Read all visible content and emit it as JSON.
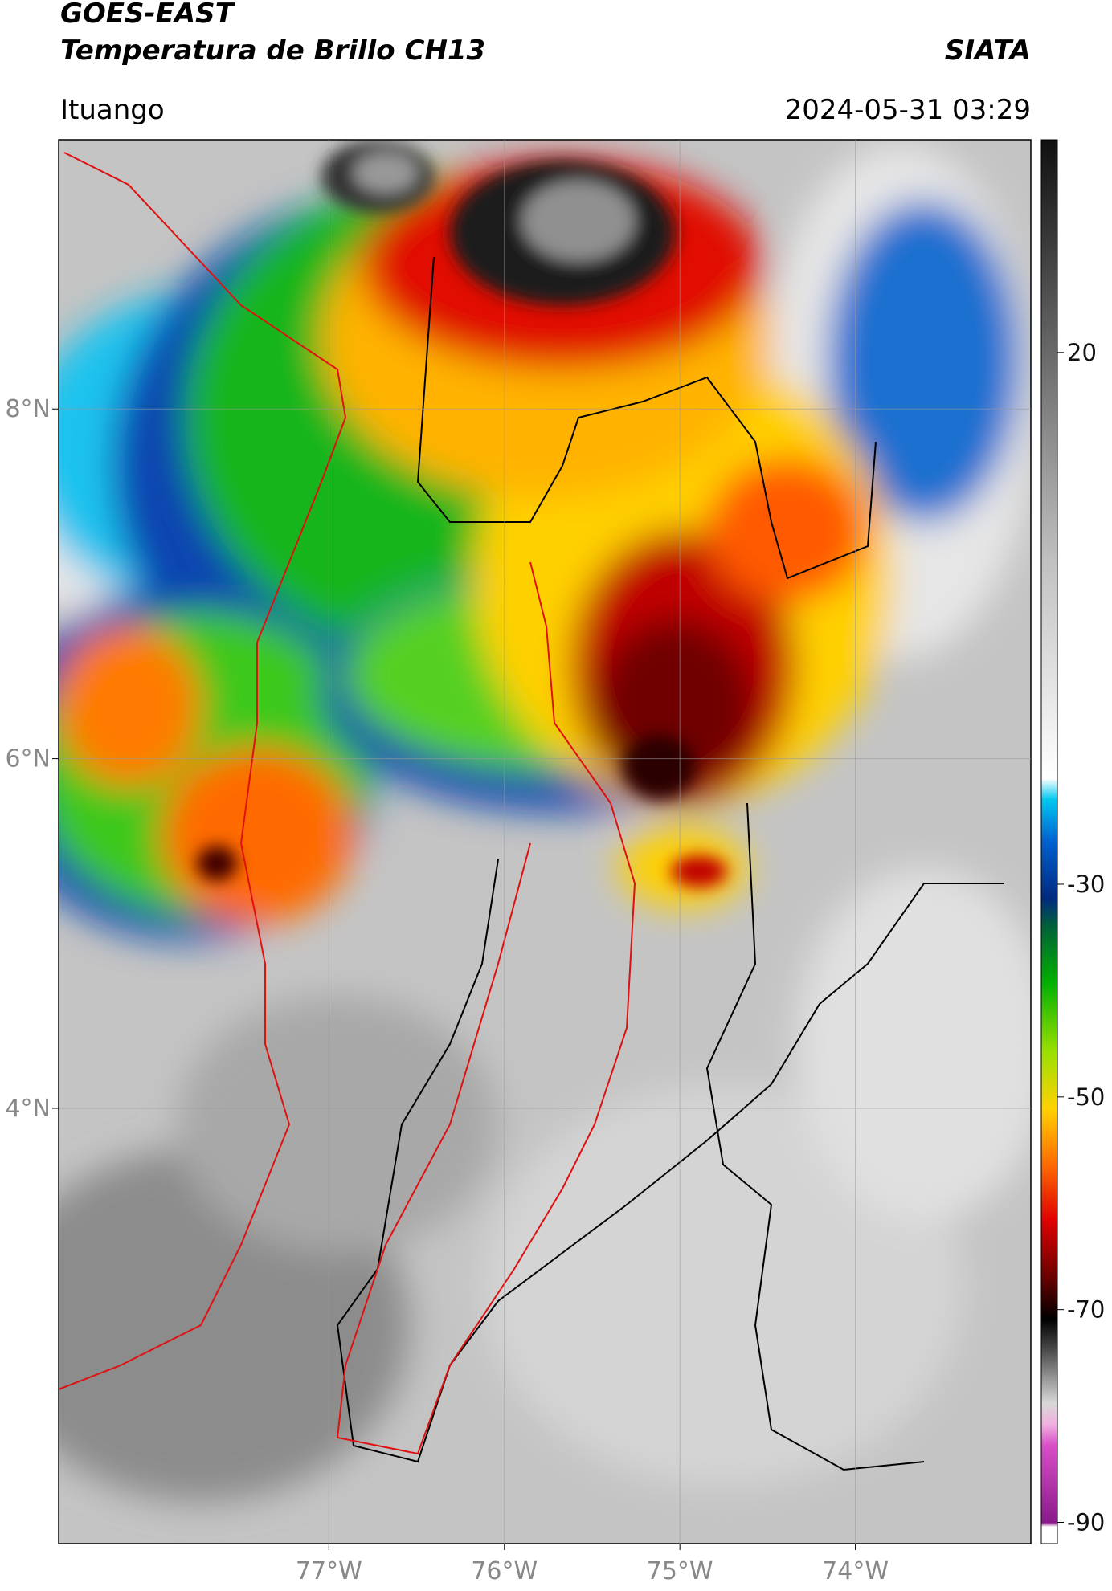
{
  "chart_data": {
    "type": "map",
    "title": "GOES-EAST",
    "subtitle": "Temperatura de Brillo CH13",
    "source": "SIATA",
    "location": "Ituango",
    "datetime": "2024-05-31 03:29",
    "xlim": [
      -78.54,
      -73.0
    ],
    "ylim": [
      1.51,
      9.54
    ],
    "xticks": [
      {
        "value": -77,
        "label": "77°W"
      },
      {
        "value": -76,
        "label": "76°W"
      },
      {
        "value": -75,
        "label": "75°W"
      },
      {
        "value": -74,
        "label": "74°W"
      }
    ],
    "yticks": [
      {
        "value": 8,
        "label": "8°N"
      },
      {
        "value": 6,
        "label": "6°N"
      },
      {
        "value": 4,
        "label": "4°N"
      }
    ],
    "colorbar_lim": [
      -92,
      40
    ],
    "colorbar_ticks": [
      20,
      -30,
      -50,
      -70,
      -90
    ],
    "grid": true
  }
}
